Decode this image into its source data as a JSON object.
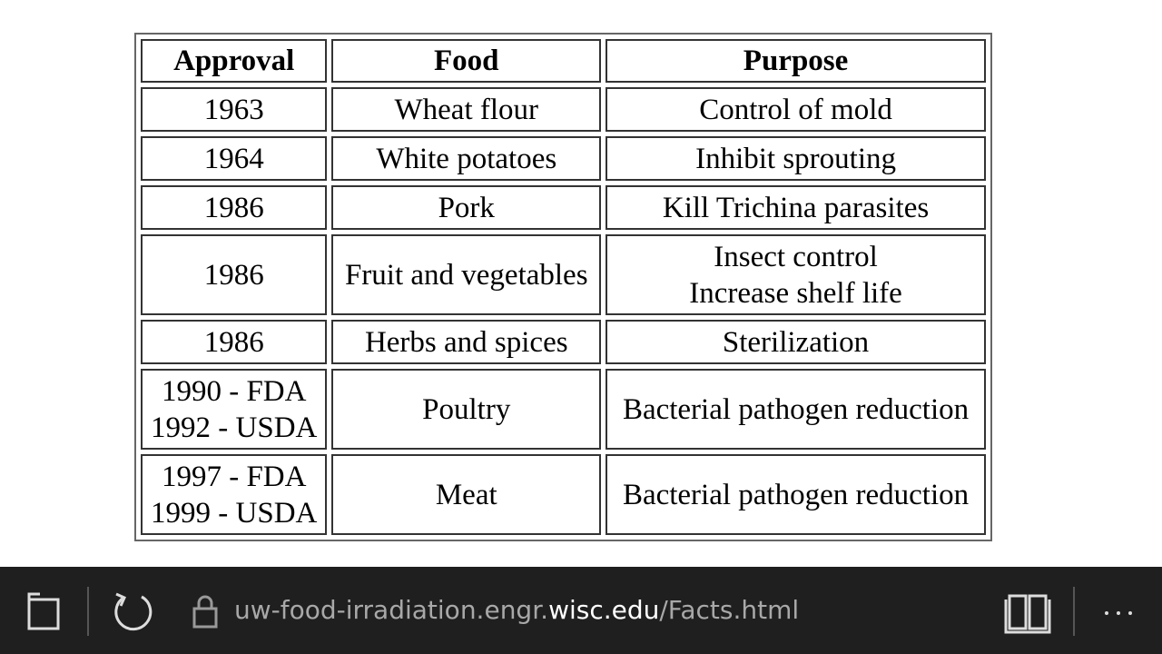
{
  "table": {
    "header": [
      "Approval",
      "Food",
      "Purpose"
    ],
    "rows": [
      [
        [
          "1963"
        ],
        [
          "Wheat flour"
        ],
        [
          "Control of mold"
        ]
      ],
      [
        [
          "1964"
        ],
        [
          "White potatoes"
        ],
        [
          "Inhibit sprouting"
        ]
      ],
      [
        [
          "1986"
        ],
        [
          "Pork"
        ],
        [
          "Kill Trichina parasites"
        ]
      ],
      [
        [
          "1986"
        ],
        [
          "Fruit and vegetables"
        ],
        [
          "Insect control",
          "Increase shelf life"
        ]
      ],
      [
        [
          "1986"
        ],
        [
          "Herbs and spices"
        ],
        [
          "Sterilization"
        ]
      ],
      [
        [
          "1990 - FDA",
          "1992 - USDA"
        ],
        [
          "Poultry"
        ],
        [
          "Bacterial pathogen reduction"
        ]
      ],
      [
        [
          "1997 - FDA",
          "1999 - USDA"
        ],
        [
          "Meat"
        ],
        [
          "Bacterial pathogen reduction"
        ]
      ]
    ]
  },
  "address_bar": {
    "url_prefix": "uw-food-irradiation.engr.",
    "url_domain": "wisc.edu",
    "url_path": "/Facts.html"
  }
}
